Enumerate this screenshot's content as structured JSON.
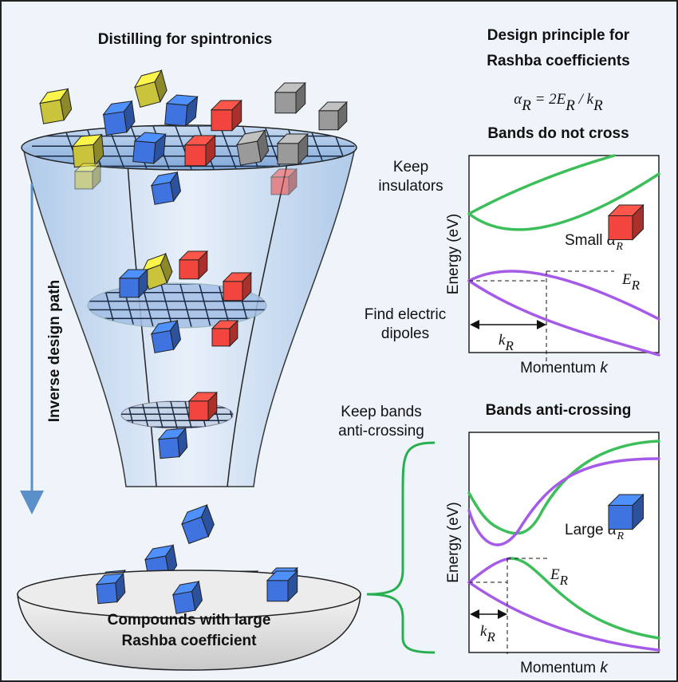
{
  "left": {
    "title": "Distilling for spintronics",
    "side_label": "Inverse design path",
    "stages": [
      [
        "Keep",
        "insulators"
      ],
      [
        "Find electric",
        "dipoles"
      ],
      [
        "Keep bands",
        "anti-crossing"
      ]
    ],
    "bowl_label": [
      "Compounds with large",
      "Rashba coefficient"
    ]
  },
  "right": {
    "title": [
      "Design principle for",
      "Rashba coefficients"
    ],
    "formula": [
      {
        "base": "α",
        "sub": "R"
      },
      {
        "base": " = 2E",
        "sub": "R"
      },
      {
        "base": " / k",
        "sub": "R"
      }
    ],
    "panels": [
      {
        "title": "Bands do not cross",
        "y_label": "Energy (eV)",
        "x_label": "Momentum",
        "x_symbol": "k",
        "material": {
          "word": "Small",
          "symbol": "α",
          "sub": "R"
        },
        "energy": {
          "symbol": "E",
          "sub": "R"
        },
        "momentum": {
          "symbol": "k",
          "sub": "R"
        }
      },
      {
        "title": "Bands anti-crossing",
        "y_label": "Energy (eV)",
        "x_label": "Momentum",
        "x_symbol": "k",
        "material": {
          "word": "Large",
          "symbol": "α",
          "sub": "R"
        },
        "energy": {
          "symbol": "E",
          "sub": "R"
        },
        "momentum": {
          "symbol": "k",
          "sub": "R"
        }
      }
    ]
  }
}
